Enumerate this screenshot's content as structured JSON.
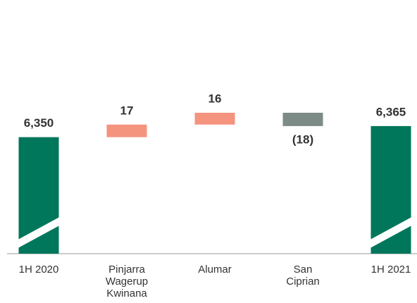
{
  "chart_data": {
    "type": "waterfall",
    "categories": [
      "1H 2020",
      [
        "Pinjarra",
        "Wagerup",
        "Kwinana"
      ],
      "Alumar",
      [
        "San",
        "Ciprian"
      ],
      "1H 2021"
    ],
    "measure": [
      "absolute",
      "relative",
      "relative",
      "relative",
      "absolute"
    ],
    "values": [
      6350,
      17,
      16,
      -18,
      6365
    ],
    "value_labels": [
      "6,350",
      "17",
      "16",
      "(18)",
      "6,365"
    ],
    "colors": [
      "#00765a",
      "#f4937e",
      "#f4937e",
      "#7c8b86",
      "#00765a"
    ],
    "axis_break": true
  }
}
